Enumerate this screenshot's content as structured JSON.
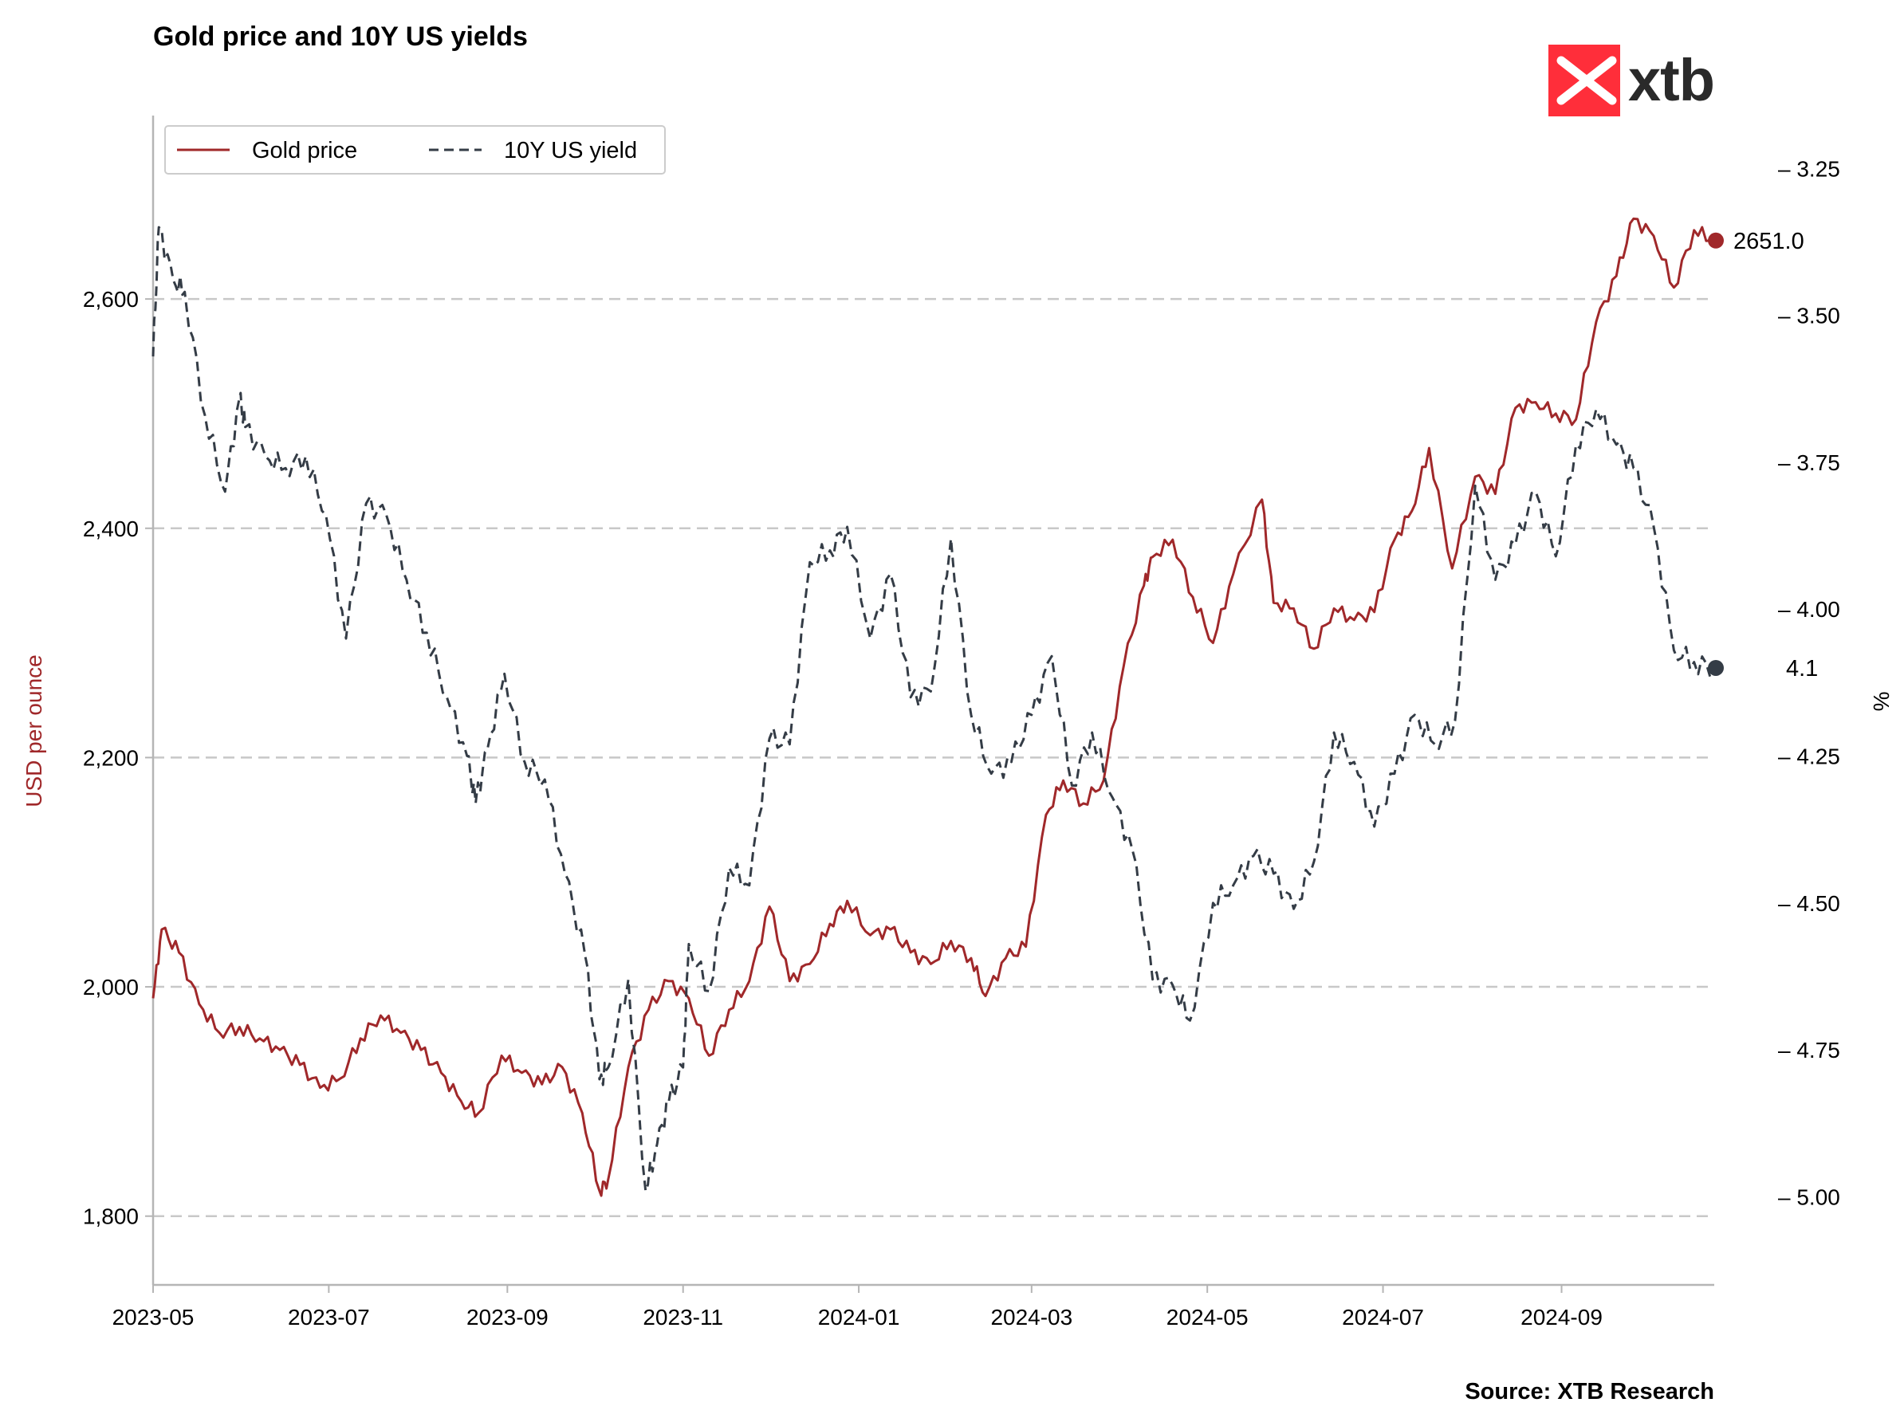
{
  "title": "Gold price and 10Y US yields",
  "source": "Source: XTB Research",
  "logo": {
    "text": "xtb",
    "color": "#ff2e3a"
  },
  "chart_data": {
    "type": "line",
    "x_ticks": [
      "2023-05",
      "2023-07",
      "2023-09",
      "2023-11",
      "2024-01",
      "2024-03",
      "2024-05",
      "2024-07",
      "2024-09"
    ],
    "x_range": [
      "2023-05-01",
      "2024-10-24"
    ],
    "left_axis": {
      "label": "USD per ounce",
      "ticks": [
        "1,800",
        "2,000",
        "2,200",
        "2,400",
        "2,600"
      ],
      "tick_values": [
        1800,
        2000,
        2200,
        2400,
        2600
      ],
      "range": [
        1740,
        2760
      ],
      "color": "#a0282a"
    },
    "right_axis": {
      "label": "%",
      "ticks": [
        "3.25",
        "3.50",
        "3.75",
        "4.00",
        "4.25",
        "4.50",
        "4.75",
        "5.00"
      ],
      "tick_values": [
        3.25,
        3.5,
        3.75,
        4.0,
        4.25,
        4.5,
        4.75,
        5.0
      ],
      "range": [
        5.15,
        3.16
      ],
      "inverted": true
    },
    "grid": "horizontal dashed",
    "legend_position": "top-left",
    "series": [
      {
        "name": "Gold price",
        "axis": "left",
        "style": "solid",
        "color": "#a0282a",
        "end_label": "2651.0",
        "points": [
          [
            "2023-05-01",
            1990
          ],
          [
            "2023-05-04",
            2050
          ],
          [
            "2023-05-10",
            2030
          ],
          [
            "2023-05-17",
            1985
          ],
          [
            "2023-05-24",
            1960
          ],
          [
            "2023-05-31",
            1965
          ],
          [
            "2023-06-07",
            1955
          ],
          [
            "2023-06-14",
            1945
          ],
          [
            "2023-06-21",
            1932
          ],
          [
            "2023-06-28",
            1912
          ],
          [
            "2023-07-05",
            1920
          ],
          [
            "2023-07-12",
            1955
          ],
          [
            "2023-07-19",
            1975
          ],
          [
            "2023-07-26",
            1960
          ],
          [
            "2023-08-02",
            1945
          ],
          [
            "2023-08-09",
            1925
          ],
          [
            "2023-08-16",
            1900
          ],
          [
            "2023-08-22",
            1890
          ],
          [
            "2023-08-30",
            1940
          ],
          [
            "2023-09-06",
            1925
          ],
          [
            "2023-09-13",
            1915
          ],
          [
            "2023-09-20",
            1930
          ],
          [
            "2023-09-27",
            1890
          ],
          [
            "2023-10-03",
            1822
          ],
          [
            "2023-10-06",
            1832
          ],
          [
            "2023-10-13",
            1930
          ],
          [
            "2023-10-20",
            1980
          ],
          [
            "2023-10-27",
            2005
          ],
          [
            "2023-11-03",
            1990
          ],
          [
            "2023-11-10",
            1940
          ],
          [
            "2023-11-17",
            1980
          ],
          [
            "2023-11-24",
            2005
          ],
          [
            "2023-12-01",
            2070
          ],
          [
            "2023-12-08",
            2005
          ],
          [
            "2023-12-15",
            2020
          ],
          [
            "2023-12-22",
            2055
          ],
          [
            "2023-12-28",
            2075
          ],
          [
            "2024-01-05",
            2045
          ],
          [
            "2024-01-12",
            2050
          ],
          [
            "2024-01-19",
            2030
          ],
          [
            "2024-01-26",
            2020
          ],
          [
            "2024-02-02",
            2040
          ],
          [
            "2024-02-09",
            2025
          ],
          [
            "2024-02-14",
            1992
          ],
          [
            "2024-02-21",
            2025
          ],
          [
            "2024-02-28",
            2035
          ],
          [
            "2024-03-06",
            2150
          ],
          [
            "2024-03-12",
            2180
          ],
          [
            "2024-03-19",
            2160
          ],
          [
            "2024-03-26",
            2180
          ],
          [
            "2024-04-02",
            2280
          ],
          [
            "2024-04-09",
            2350
          ],
          [
            "2024-04-12",
            2375
          ],
          [
            "2024-04-19",
            2390
          ],
          [
            "2024-04-26",
            2340
          ],
          [
            "2024-05-03",
            2300
          ],
          [
            "2024-05-10",
            2360
          ],
          [
            "2024-05-20",
            2425
          ],
          [
            "2024-05-24",
            2335
          ],
          [
            "2024-05-31",
            2330
          ],
          [
            "2024-06-07",
            2295
          ],
          [
            "2024-06-14",
            2330
          ],
          [
            "2024-06-21",
            2320
          ],
          [
            "2024-06-28",
            2327
          ],
          [
            "2024-07-05",
            2390
          ],
          [
            "2024-07-11",
            2415
          ],
          [
            "2024-07-17",
            2470
          ],
          [
            "2024-07-25",
            2365
          ],
          [
            "2024-08-02",
            2445
          ],
          [
            "2024-08-09",
            2430
          ],
          [
            "2024-08-16",
            2505
          ],
          [
            "2024-08-23",
            2510
          ],
          [
            "2024-08-30",
            2500
          ],
          [
            "2024-09-06",
            2495
          ],
          [
            "2024-09-13",
            2580
          ],
          [
            "2024-09-20",
            2620
          ],
          [
            "2024-09-26",
            2670
          ],
          [
            "2024-10-03",
            2655
          ],
          [
            "2024-10-10",
            2610
          ],
          [
            "2024-10-17",
            2660
          ],
          [
            "2024-10-24",
            2651
          ]
        ]
      },
      {
        "name": "10Y US yield",
        "axis": "right",
        "style": "dashed",
        "color": "#343c46",
        "end_label": "4.1",
        "points": [
          [
            "2023-05-01",
            3.57
          ],
          [
            "2023-05-03",
            3.35
          ],
          [
            "2023-05-08",
            3.44
          ],
          [
            "2023-05-12",
            3.46
          ],
          [
            "2023-05-19",
            3.67
          ],
          [
            "2023-05-26",
            3.8
          ],
          [
            "2023-05-31",
            3.64
          ],
          [
            "2023-06-02",
            3.69
          ],
          [
            "2023-06-09",
            3.74
          ],
          [
            "2023-06-16",
            3.76
          ],
          [
            "2023-06-23",
            3.74
          ],
          [
            "2023-06-30",
            3.84
          ],
          [
            "2023-07-07",
            4.05
          ],
          [
            "2023-07-14",
            3.82
          ],
          [
            "2023-07-21",
            3.84
          ],
          [
            "2023-07-28",
            3.95
          ],
          [
            "2023-08-04",
            4.04
          ],
          [
            "2023-08-11",
            4.15
          ],
          [
            "2023-08-18",
            4.25
          ],
          [
            "2023-08-21",
            4.33
          ],
          [
            "2023-08-25",
            4.24
          ],
          [
            "2023-08-31",
            4.11
          ],
          [
            "2023-09-07",
            4.26
          ],
          [
            "2023-09-14",
            4.29
          ],
          [
            "2023-09-21",
            4.45
          ],
          [
            "2023-09-28",
            4.59
          ],
          [
            "2023-10-03",
            4.8
          ],
          [
            "2023-10-06",
            4.78
          ],
          [
            "2023-10-13",
            4.63
          ],
          [
            "2023-10-19",
            4.99
          ],
          [
            "2023-10-23",
            4.91
          ],
          [
            "2023-10-27",
            4.84
          ],
          [
            "2023-11-01",
            4.78
          ],
          [
            "2023-11-03",
            4.57
          ],
          [
            "2023-11-10",
            4.65
          ],
          [
            "2023-11-17",
            4.44
          ],
          [
            "2023-11-24",
            4.47
          ],
          [
            "2023-12-01",
            4.22
          ],
          [
            "2023-12-08",
            4.23
          ],
          [
            "2023-12-15",
            3.92
          ],
          [
            "2023-12-22",
            3.9
          ],
          [
            "2023-12-28",
            3.86
          ],
          [
            "2024-01-05",
            4.05
          ],
          [
            "2024-01-12",
            3.94
          ],
          [
            "2024-01-19",
            4.15
          ],
          [
            "2024-01-26",
            4.14
          ],
          [
            "2024-02-02",
            3.88
          ],
          [
            "2024-02-09",
            4.18
          ],
          [
            "2024-02-16",
            4.28
          ],
          [
            "2024-02-23",
            4.26
          ],
          [
            "2024-03-01",
            4.18
          ],
          [
            "2024-03-08",
            4.08
          ],
          [
            "2024-03-15",
            4.3
          ],
          [
            "2024-03-22",
            4.21
          ],
          [
            "2024-03-29",
            4.32
          ],
          [
            "2024-04-05",
            4.41
          ],
          [
            "2024-04-12",
            4.63
          ],
          [
            "2024-04-19",
            4.64
          ],
          [
            "2024-04-25",
            4.7
          ],
          [
            "2024-05-03",
            4.5
          ],
          [
            "2024-05-10",
            4.47
          ],
          [
            "2024-05-17",
            4.42
          ],
          [
            "2024-05-24",
            4.45
          ],
          [
            "2024-05-31",
            4.51
          ],
          [
            "2024-06-07",
            4.43
          ],
          [
            "2024-06-14",
            4.21
          ],
          [
            "2024-06-21",
            4.26
          ],
          [
            "2024-06-28",
            4.37
          ],
          [
            "2024-07-05",
            4.28
          ],
          [
            "2024-07-12",
            4.18
          ],
          [
            "2024-07-19",
            4.23
          ],
          [
            "2024-07-26",
            4.19
          ],
          [
            "2024-08-02",
            3.79
          ],
          [
            "2024-08-09",
            3.95
          ],
          [
            "2024-08-16",
            3.89
          ],
          [
            "2024-08-23",
            3.8
          ],
          [
            "2024-08-30",
            3.91
          ],
          [
            "2024-09-06",
            3.72
          ],
          [
            "2024-09-13",
            3.66
          ],
          [
            "2024-09-20",
            3.72
          ],
          [
            "2024-09-26",
            3.76
          ],
          [
            "2024-10-03",
            3.86
          ],
          [
            "2024-10-10",
            4.07
          ],
          [
            "2024-10-17",
            4.09
          ],
          [
            "2024-10-24",
            4.1
          ]
        ]
      }
    ]
  }
}
